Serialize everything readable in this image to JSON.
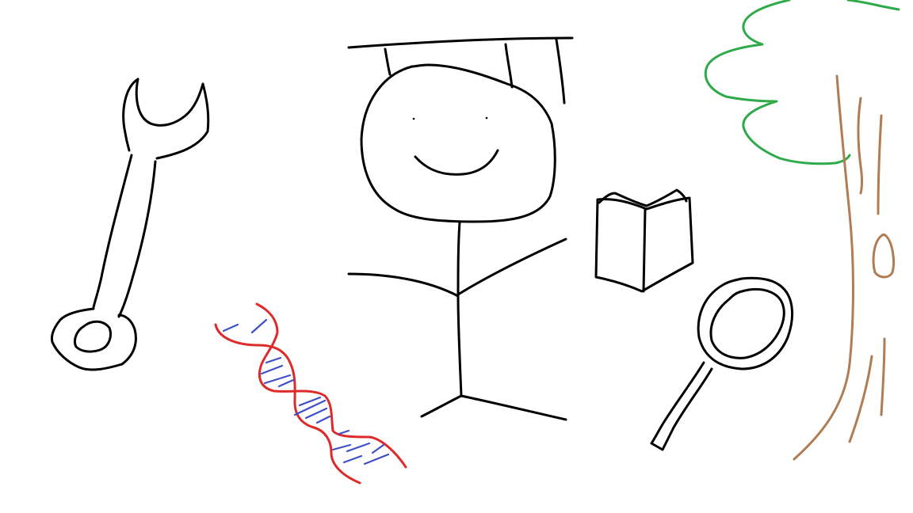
{
  "drawing": {
    "colors": {
      "ink": "#000000",
      "tree_canopy": "#2eaa4a",
      "tree_trunk": "#b07c53",
      "dna_backbone": "#dd2b2b",
      "dna_rungs": "#3f4fc9",
      "background": "#ffffff"
    },
    "objects": [
      "wrench-icon",
      "dna-icon",
      "person-icon",
      "graduation-cap-icon",
      "book-icon",
      "magnifying-glass-icon",
      "tree-icon"
    ]
  }
}
